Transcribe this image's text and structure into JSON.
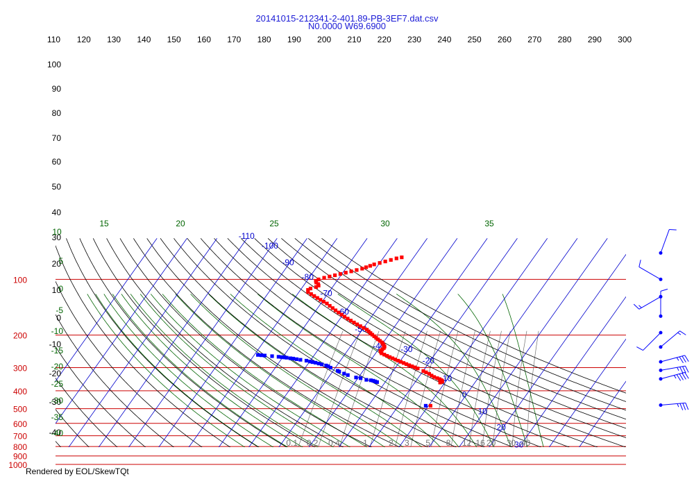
{
  "chart_data": {
    "type": "scatter",
    "title": "20141015-212341-2-401.89-PB-3EF7.dat.csv",
    "subtitle": "N0.0000 W69.6900",
    "footer": "Rendered by EOL/SkewTQt",
    "colors": {
      "temperature": "#ff0000",
      "dewpoint": "#0000ff",
      "isobar": "#cc0000",
      "isotherm": "#0000cc",
      "dry_adiabat": "#000000",
      "moist_adiabat": "#006400",
      "mixing_ratio": "#707070",
      "wind_barb": "#0000ff"
    },
    "top_axis": {
      "ticks": [
        "110",
        "120",
        "130",
        "140",
        "150",
        "160",
        "170",
        "180",
        "190",
        "200",
        "210",
        "220",
        "230",
        "240",
        "250",
        "260",
        "270",
        "280",
        "290",
        "300"
      ]
    },
    "isobars": [
      {
        "label": "100",
        "value": 100
      },
      {
        "label": "200",
        "value": 200
      },
      {
        "label": "300",
        "value": 300
      },
      {
        "label": "400",
        "value": 400
      },
      {
        "label": "500",
        "value": 500
      },
      {
        "label": "600",
        "value": 600
      },
      {
        "label": "700",
        "value": 700
      },
      {
        "label": "800",
        "value": 800
      },
      {
        "label": "900",
        "value": 900
      },
      {
        "label": "1000",
        "value": 1000
      }
    ],
    "isotherm_labels": [
      {
        "label": "-110",
        "t": -110,
        "p": 60.5
      },
      {
        "label": "-100",
        "t": -100,
        "p": 68
      },
      {
        "label": "-90",
        "t": -90,
        "p": 83.8
      },
      {
        "label": "-80",
        "t": -80,
        "p": 100.7
      },
      {
        "label": "-70",
        "t": -70,
        "p": 123
      },
      {
        "label": "-60",
        "t": -60,
        "p": 155
      },
      {
        "label": "-50",
        "t": -50,
        "p": 192
      },
      {
        "label": "-40",
        "t": -40,
        "p": 237
      },
      {
        "label": "-30",
        "t": -30,
        "p": 247
      },
      {
        "label": "-20",
        "t": -20,
        "p": 285
      },
      {
        "label": "-10",
        "t": -10,
        "p": 355
      },
      {
        "label": "0",
        "t": 0,
        "p": 435
      },
      {
        "label": "10",
        "t": 10,
        "p": 535
      },
      {
        "label": "20",
        "t": 20,
        "p": 653
      },
      {
        "label": "30",
        "t": 30,
        "p": 810
      }
    ],
    "potential_temperature_labels": [
      {
        "label": "100",
        "value": 100
      },
      {
        "label": "90",
        "value": 90
      },
      {
        "label": "80",
        "value": 80
      },
      {
        "label": "70",
        "value": 70
      },
      {
        "label": "60",
        "value": 60
      },
      {
        "label": "50",
        "value": 50
      },
      {
        "label": "40",
        "value": 40
      },
      {
        "label": "30",
        "value": 30
      },
      {
        "label": "20",
        "value": 20
      },
      {
        "label": "10",
        "value": 10
      },
      {
        "label": "0",
        "value": 0
      },
      {
        "label": "-10",
        "value": -10
      },
      {
        "label": "-20",
        "value": -20
      },
      {
        "label": "-30",
        "value": -30
      },
      {
        "label": "-40",
        "value": -40
      }
    ],
    "moist_adiabat_labels": [
      {
        "label": "10",
        "value": 10
      },
      {
        "label": "15",
        "value": 15
      },
      {
        "label": "20",
        "value": 20
      },
      {
        "label": "25",
        "value": 25
      },
      {
        "label": "30",
        "value": 30
      },
      {
        "label": "35",
        "value": 35
      }
    ],
    "moist_adiabat_side_labels": [
      {
        "label": "5",
        "value": 5
      },
      {
        "label": "0",
        "value": 0
      },
      {
        "label": "-5",
        "value": -5
      },
      {
        "label": "-10",
        "value": -10
      },
      {
        "label": "-15",
        "value": -15
      },
      {
        "label": "-20",
        "value": -20
      },
      {
        "label": "-25",
        "value": -25
      },
      {
        "label": "-30",
        "value": -30
      },
      {
        "label": "-35",
        "value": -35
      },
      {
        "label": "-40",
        "value": -40
      }
    ],
    "mixing_ratio_labels": [
      {
        "label": "0.1",
        "w": 0.1
      },
      {
        "label": "0.2",
        "w": 0.2
      },
      {
        "label": "0.4",
        "w": 0.4
      },
      {
        "label": "1",
        "w": 1
      },
      {
        "label": "2",
        "w": 2
      },
      {
        "label": "3",
        "w": 3
      },
      {
        "label": "5",
        "w": 5
      },
      {
        "label": "8",
        "w": 8
      },
      {
        "label": "12",
        "w": 12
      },
      {
        "label": "16",
        "w": 16
      },
      {
        "label": "20",
        "w": 20
      },
      {
        "label": "30",
        "w": 30
      },
      {
        "label": "40",
        "w": 40
      }
    ],
    "temperature": [
      {
        "p": 76,
        "t": -54
      },
      {
        "p": 77,
        "t": -55.5
      },
      {
        "p": 78.5,
        "t": -57
      },
      {
        "p": 80,
        "t": -58.5
      },
      {
        "p": 81.5,
        "t": -60
      },
      {
        "p": 83,
        "t": -61.5
      },
      {
        "p": 84.5,
        "t": -62.5
      },
      {
        "p": 86,
        "t": -63.5
      },
      {
        "p": 87.5,
        "t": -64.5
      },
      {
        "p": 89,
        "t": -66
      },
      {
        "p": 90.5,
        "t": -67.5
      },
      {
        "p": 92,
        "t": -69
      },
      {
        "p": 93.5,
        "t": -70.5
      },
      {
        "p": 95,
        "t": -72
      },
      {
        "p": 96.5,
        "t": -73.5
      },
      {
        "p": 98,
        "t": -75
      },
      {
        "p": 100,
        "t": -76.5
      },
      {
        "p": 102,
        "t": -77
      },
      {
        "p": 104,
        "t": -76.5
      },
      {
        "p": 106,
        "t": -75.5
      },
      {
        "p": 108,
        "t": -75
      },
      {
        "p": 110,
        "t": -75.5
      },
      {
        "p": 112,
        "t": -77
      },
      {
        "p": 114,
        "t": -77.5
      },
      {
        "p": 117,
        "t": -77
      },
      {
        "p": 120,
        "t": -75.5
      },
      {
        "p": 123,
        "t": -74
      },
      {
        "p": 126,
        "t": -72.5
      },
      {
        "p": 129,
        "t": -71
      },
      {
        "p": 132,
        "t": -69.5
      },
      {
        "p": 135,
        "t": -68
      },
      {
        "p": 139,
        "t": -66.5
      },
      {
        "p": 143,
        "t": -65
      },
      {
        "p": 147,
        "t": -63.5
      },
      {
        "p": 151,
        "t": -62
      },
      {
        "p": 155,
        "t": -60.5
      },
      {
        "p": 159,
        "t": -59
      },
      {
        "p": 163,
        "t": -57.5
      },
      {
        "p": 167,
        "t": -56
      },
      {
        "p": 171,
        "t": -54.5
      },
      {
        "p": 175,
        "t": -53
      },
      {
        "p": 179,
        "t": -51.5
      },
      {
        "p": 183,
        "t": -50
      },
      {
        "p": 187,
        "t": -48.5
      },
      {
        "p": 191,
        "t": -47.5
      },
      {
        "p": 195,
        "t": -46.5
      },
      {
        "p": 199,
        "t": -45.5
      },
      {
        "p": 203,
        "t": -44.5
      },
      {
        "p": 207,
        "t": -43.5
      },
      {
        "p": 211,
        "t": -42.5
      },
      {
        "p": 215,
        "t": -41.5
      },
      {
        "p": 219,
        "t": -40.5
      },
      {
        "p": 223,
        "t": -39.8
      },
      {
        "p": 227,
        "t": -39.2
      },
      {
        "p": 231,
        "t": -38.6
      },
      {
        "p": 235,
        "t": -38.5
      },
      {
        "p": 239,
        "t": -38.7
      },
      {
        "p": 243,
        "t": -39
      },
      {
        "p": 247,
        "t": -38.5
      },
      {
        "p": 251,
        "t": -38
      },
      {
        "p": 255,
        "t": -36.8
      },
      {
        "p": 259,
        "t": -35.6
      },
      {
        "p": 263,
        "t": -34.4
      },
      {
        "p": 267,
        "t": -33.2
      },
      {
        "p": 271,
        "t": -32
      },
      {
        "p": 275,
        "t": -30.8
      },
      {
        "p": 279,
        "t": -29.6
      },
      {
        "p": 283,
        "t": -28.4
      },
      {
        "p": 287,
        "t": -27.2
      },
      {
        "p": 291,
        "t": -26
      },
      {
        "p": 295,
        "t": -24.8
      },
      {
        "p": 299,
        "t": -23.6
      },
      {
        "p": 303,
        "t": -22.4
      },
      {
        "p": 313,
        "t": -19.9
      },
      {
        "p": 318,
        "t": -18.7
      },
      {
        "p": 324,
        "t": -17.3
      },
      {
        "p": 331,
        "t": -16.1
      },
      {
        "p": 337,
        "t": -14.9
      },
      {
        "p": 342,
        "t": -13.6
      },
      {
        "p": 346,
        "t": -12.6
      },
      {
        "p": 350,
        "t": -11.8
      },
      {
        "p": 354,
        "t": -11.3
      },
      {
        "p": 357,
        "t": -11.1
      },
      {
        "p": 361,
        "t": -11.6
      }
    ],
    "dewpoint": [
      {
        "p": 256,
        "t": -78.8
      },
      {
        "p": 257,
        "t": -77.6
      },
      {
        "p": 258,
        "t": -76.4
      },
      {
        "p": 260,
        "t": -73.8
      },
      {
        "p": 262,
        "t": -71.5
      },
      {
        "p": 263,
        "t": -70.4
      },
      {
        "p": 264,
        "t": -69.5
      },
      {
        "p": 265,
        "t": -68.6
      },
      {
        "p": 267,
        "t": -67.2
      },
      {
        "p": 268,
        "t": -66.2
      },
      {
        "p": 270,
        "t": -64.9
      },
      {
        "p": 272,
        "t": -63.5
      },
      {
        "p": 275,
        "t": -61.3
      },
      {
        "p": 278,
        "t": -59.9
      },
      {
        "p": 280,
        "t": -58.9
      },
      {
        "p": 282,
        "t": -57.8
      },
      {
        "p": 285,
        "t": -56.5
      },
      {
        "p": 288,
        "t": -55.3
      },
      {
        "p": 292,
        "t": -53.6
      },
      {
        "p": 295,
        "t": -52.7
      },
      {
        "p": 300,
        "t": -51.6
      },
      {
        "p": 312,
        "t": -48.5
      },
      {
        "p": 315,
        "t": -47.8
      },
      {
        "p": 323,
        "t": -45.7
      },
      {
        "p": 329,
        "t": -44.1
      },
      {
        "p": 339,
        "t": -40.8
      },
      {
        "p": 342,
        "t": -39.1
      },
      {
        "p": 349,
        "t": -36.8
      },
      {
        "p": 351,
        "t": -35.2
      },
      {
        "p": 353,
        "t": -34.3
      },
      {
        "p": 356,
        "t": -33.5
      },
      {
        "p": 359,
        "t": -32.7
      },
      {
        "p": 482,
        "t": -10.9
      }
    ],
    "isolated_temperature": [
      {
        "p": 482,
        "t": -9.3
      }
    ],
    "winds": [
      {
        "p": 72,
        "dir": 20,
        "spd": 10
      },
      {
        "p": 100,
        "dir": 300,
        "spd": 10
      },
      {
        "p": 124,
        "dir": 240,
        "spd": 15
      },
      {
        "p": 158,
        "dir": 0,
        "spd": 10
      },
      {
        "p": 194,
        "dir": 225,
        "spd": 10
      },
      {
        "p": 232,
        "dir": 50,
        "spd": 15
      },
      {
        "p": 279,
        "dir": 75,
        "spd": 35
      },
      {
        "p": 310,
        "dir": 80,
        "spd": 35
      },
      {
        "p": 345,
        "dir": 75,
        "spd": 45
      },
      {
        "p": 478,
        "dir": 85,
        "spd": 35
      }
    ]
  }
}
